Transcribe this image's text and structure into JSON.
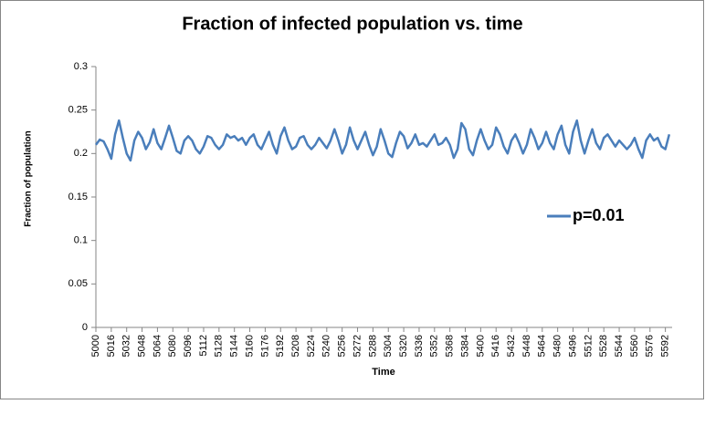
{
  "chart_data": {
    "type": "line",
    "title": "Fraction of infected population vs. time",
    "x_label": "Time",
    "y_label": "Fraction of population",
    "legend": "right",
    "x": [
      5000,
      5004,
      5008,
      5012,
      5016,
      5020,
      5024,
      5028,
      5032,
      5036,
      5040,
      5044,
      5048,
      5052,
      5056,
      5060,
      5064,
      5068,
      5072,
      5076,
      5080,
      5084,
      5088,
      5092,
      5096,
      5100,
      5104,
      5108,
      5112,
      5116,
      5120,
      5124,
      5128,
      5132,
      5136,
      5140,
      5144,
      5148,
      5152,
      5156,
      5160,
      5164,
      5168,
      5172,
      5176,
      5180,
      5184,
      5188,
      5192,
      5196,
      5200,
      5204,
      5208,
      5212,
      5216,
      5220,
      5224,
      5228,
      5232,
      5236,
      5240,
      5244,
      5248,
      5252,
      5256,
      5260,
      5264,
      5268,
      5272,
      5276,
      5280,
      5284,
      5288,
      5292,
      5296,
      5300,
      5304,
      5308,
      5312,
      5316,
      5320,
      5324,
      5328,
      5332,
      5336,
      5340,
      5344,
      5348,
      5352,
      5356,
      5360,
      5364,
      5368,
      5372,
      5376,
      5380,
      5384,
      5388,
      5392,
      5396,
      5400,
      5404,
      5408,
      5412,
      5416,
      5420,
      5424,
      5428,
      5432,
      5436,
      5440,
      5444,
      5448,
      5452,
      5456,
      5460,
      5464,
      5468,
      5472,
      5476,
      5480,
      5484,
      5488,
      5492,
      5496,
      5500,
      5504,
      5508,
      5512,
      5516,
      5520,
      5524,
      5528,
      5532,
      5536,
      5540,
      5544,
      5548,
      5552,
      5556,
      5560,
      5564,
      5568,
      5572,
      5576,
      5580,
      5584,
      5588,
      5592,
      5596
    ],
    "series": [
      {
        "name": "p=0.01",
        "color": "#4a7ebb",
        "values": [
          0.21,
          0.216,
          0.214,
          0.205,
          0.194,
          0.222,
          0.238,
          0.218,
          0.2,
          0.192,
          0.215,
          0.225,
          0.218,
          0.205,
          0.213,
          0.228,
          0.212,
          0.205,
          0.218,
          0.232,
          0.218,
          0.203,
          0.2,
          0.215,
          0.22,
          0.215,
          0.205,
          0.2,
          0.208,
          0.22,
          0.218,
          0.21,
          0.205,
          0.21,
          0.222,
          0.218,
          0.22,
          0.215,
          0.218,
          0.21,
          0.218,
          0.222,
          0.21,
          0.205,
          0.215,
          0.225,
          0.21,
          0.2,
          0.22,
          0.23,
          0.215,
          0.205,
          0.208,
          0.218,
          0.22,
          0.21,
          0.205,
          0.21,
          0.218,
          0.212,
          0.206,
          0.215,
          0.228,
          0.215,
          0.2,
          0.21,
          0.23,
          0.215,
          0.205,
          0.215,
          0.225,
          0.21,
          0.198,
          0.208,
          0.228,
          0.215,
          0.2,
          0.196,
          0.212,
          0.225,
          0.22,
          0.206,
          0.212,
          0.222,
          0.21,
          0.212,
          0.208,
          0.215,
          0.222,
          0.21,
          0.212,
          0.218,
          0.21,
          0.195,
          0.205,
          0.235,
          0.228,
          0.205,
          0.198,
          0.215,
          0.228,
          0.215,
          0.205,
          0.21,
          0.23,
          0.222,
          0.208,
          0.2,
          0.215,
          0.222,
          0.212,
          0.2,
          0.21,
          0.228,
          0.218,
          0.205,
          0.212,
          0.225,
          0.212,
          0.205,
          0.222,
          0.232,
          0.21,
          0.2,
          0.225,
          0.238,
          0.215,
          0.2,
          0.215,
          0.228,
          0.212,
          0.205,
          0.218,
          0.222,
          0.215,
          0.208,
          0.215,
          0.21,
          0.205,
          0.21,
          0.218,
          0.205,
          0.195,
          0.215,
          0.222,
          0.215,
          0.218,
          0.208,
          0.205,
          0.222
        ]
      }
    ],
    "xlim": [
      5000,
      5599
    ],
    "xticks": [
      5000,
      5016,
      5032,
      5048,
      5064,
      5080,
      5096,
      5112,
      5128,
      5144,
      5160,
      5176,
      5192,
      5208,
      5224,
      5240,
      5256,
      5272,
      5288,
      5304,
      5320,
      5336,
      5352,
      5368,
      5384,
      5400,
      5416,
      5432,
      5448,
      5464,
      5480,
      5496,
      5512,
      5528,
      5544,
      5560,
      5576,
      5592
    ],
    "ylim": [
      0,
      0.3
    ],
    "yticks": [
      0,
      0.05,
      0.1,
      0.15,
      0.2,
      0.25,
      0.3
    ],
    "grid": false
  }
}
